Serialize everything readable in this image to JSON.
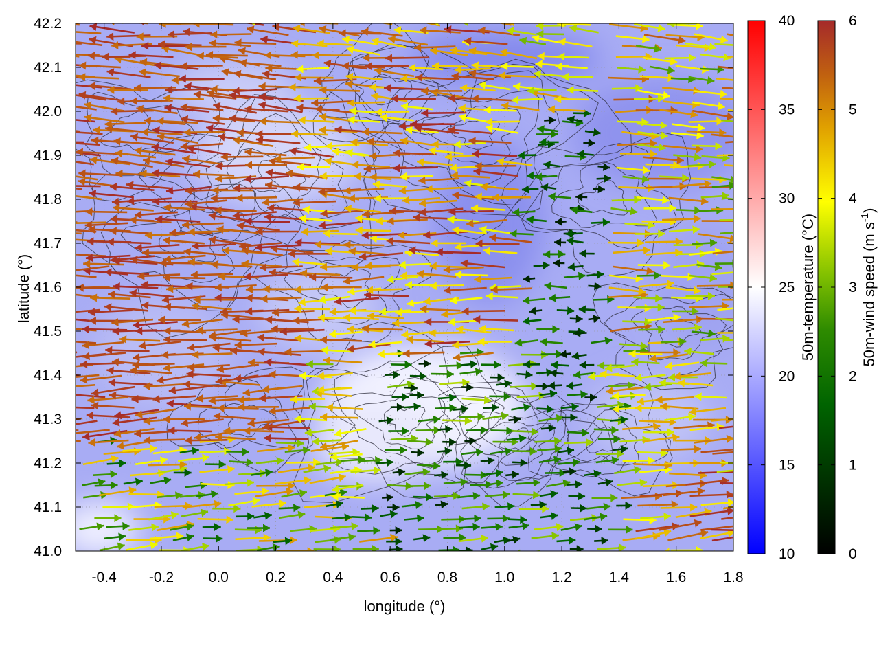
{
  "chart_data": {
    "type": "vector-field",
    "title": "",
    "xlabel": "longitude (°)",
    "ylabel": "latitude (°)",
    "xlim": [
      -0.5,
      1.8
    ],
    "ylim": [
      41.0,
      42.2
    ],
    "xticks": [
      -0.4,
      -0.2,
      0.0,
      0.2,
      0.4,
      0.6,
      0.8,
      1.0,
      1.2,
      1.4,
      1.6,
      1.8
    ],
    "xtick_labels": [
      "-0.4",
      "-0.2",
      "0.0",
      "0.2",
      "0.4",
      "0.6",
      "0.8",
      "1.0",
      "1.2",
      "1.4",
      "1.6",
      "1.8"
    ],
    "yticks": [
      41.0,
      41.1,
      41.2,
      41.3,
      41.4,
      41.5,
      41.6,
      41.7,
      41.8,
      41.9,
      42.0,
      42.1,
      42.2
    ],
    "ytick_labels": [
      "41.0",
      "41.1",
      "41.2",
      "41.3",
      "41.4",
      "41.5",
      "41.6",
      "41.7",
      "41.8",
      "41.9",
      "42.0",
      "42.1",
      "42.2"
    ],
    "grid": true,
    "background_field": {
      "name": "50m-temperature",
      "unit": "°C",
      "typical_range": [
        15,
        22
      ]
    },
    "colorbars": [
      {
        "label": "50m-temperature (°C)",
        "range": [
          10,
          40
        ],
        "ticks": [
          10,
          15,
          20,
          25,
          30,
          35,
          40
        ],
        "tick_labels": [
          "10",
          "15",
          "20",
          "25",
          "30",
          "35",
          "40"
        ],
        "colors": [
          "#0000ff",
          "#ffffff",
          "#ff0000"
        ]
      },
      {
        "label_main": "50m-wind speed (m s",
        "label_sup": "-1",
        "label_close": ")",
        "range": [
          0,
          6
        ],
        "ticks": [
          0,
          1,
          2,
          3,
          4,
          5,
          6
        ],
        "tick_labels": [
          "0",
          "1",
          "2",
          "3",
          "4",
          "5",
          "6"
        ],
        "colors": [
          "#000000",
          "#006400",
          "#2e8b00",
          "#7fbf00",
          "#ffff00",
          "#e0a000",
          "#c06010",
          "#a52a2a"
        ]
      }
    ],
    "wind_regions": [
      {
        "lon": [
          -0.5,
          0.35
        ],
        "lat": [
          41.25,
          42.2
        ],
        "u_dir": -1,
        "speed": [
          5.2,
          6.0
        ]
      },
      {
        "lon": [
          0.35,
          1.1
        ],
        "lat": [
          41.45,
          42.2
        ],
        "u_dir": -1,
        "speed": [
          3.8,
          6.0
        ]
      },
      {
        "lon": [
          1.1,
          1.35
        ],
        "lat": [
          41.35,
          42.0
        ],
        "u_dir": 0,
        "speed": [
          0.5,
          2.5
        ]
      },
      {
        "lon": [
          1.35,
          1.8
        ],
        "lat": [
          41.45,
          42.2
        ],
        "u_dir": 1,
        "speed": [
          2.5,
          5.5
        ]
      },
      {
        "lon": [
          0.55,
          1.4
        ],
        "lat": [
          41.0,
          41.45
        ],
        "u_dir": 1,
        "speed": [
          0.5,
          3.5
        ]
      },
      {
        "lon": [
          1.2,
          1.8
        ],
        "lat": [
          41.0,
          41.3
        ],
        "u_dir": 1,
        "speed": [
          3.5,
          6.0
        ]
      },
      {
        "lon": [
          -0.5,
          0.5
        ],
        "lat": [
          41.0,
          41.25
        ],
        "u_dir": 1,
        "speed": [
          1.5,
          5.0
        ]
      }
    ],
    "contour_levels_m": [
      100,
      200,
      300,
      400,
      500,
      600,
      800,
      1000
    ]
  }
}
